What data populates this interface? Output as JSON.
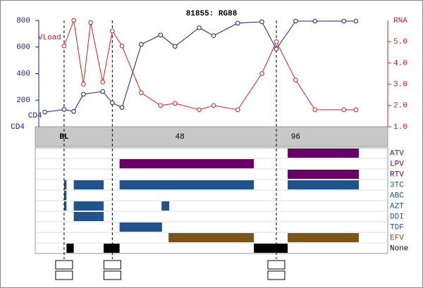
{
  "chart_data": {
    "type": "line",
    "title": "81855: RG88",
    "xlim": [
      -10.5,
      134.2
    ],
    "xticks": [
      {
        "value": 0,
        "label": "BL"
      },
      48,
      96
    ],
    "ylim": [
      0,
      800
    ],
    "yticks": [
      200,
      400,
      600,
      800
    ],
    "y_label": "CD4",
    "y2lim": [
      1,
      6
    ],
    "y2ticks": [
      {
        "value": 1,
        "label": "1.0"
      },
      {
        "value": 2,
        "label": "2.0"
      },
      {
        "value": 3,
        "label": "3.0"
      },
      {
        "value": 4,
        "label": "4.0"
      },
      {
        "value": 5,
        "label": "5.0"
      }
    ],
    "y2_label": "RNA",
    "event_weeks": [
      0,
      20,
      88
    ],
    "series": [
      {
        "name": "CD4",
        "color": "#1a1a8c",
        "x": [
          -8,
          0,
          4,
          8,
          16,
          20,
          24,
          32,
          40,
          46,
          56,
          62,
          72,
          82,
          88,
          96,
          104,
          116,
          121
        ],
        "values": [
          110,
          130,
          115,
          245,
          265,
          180,
          145,
          620,
          690,
          605,
          745,
          685,
          780,
          790,
          585,
          795,
          795,
          795,
          795
        ]
      },
      {
        "name": "VLoad",
        "color": "#cc2222",
        "axis": "y2",
        "x": [
          0,
          4,
          8,
          11,
          16,
          20,
          24,
          32,
          40,
          46,
          56,
          62,
          72,
          82,
          88,
          96,
          104,
          116,
          121
        ],
        "values": [
          4.8,
          6.0,
          3.0,
          5.9,
          3.1,
          5.5,
          4.8,
          2.6,
          2.0,
          2.1,
          1.8,
          2.0,
          1.8,
          3.5,
          5.0,
          3.2,
          1.8,
          1.8,
          1.8
        ]
      }
    ]
  },
  "drugs": [
    {
      "name": "ATV",
      "color": "#660066",
      "periods": [
        [
          92.7,
          122.2
        ]
      ]
    },
    {
      "name": "LPV",
      "color": "#660066",
      "periods": [
        [
          23,
          78.7
        ]
      ]
    },
    {
      "name": "RTV",
      "color": "#660066",
      "periods": [
        [
          92.7,
          122.2
        ]
      ]
    },
    {
      "name": "3TC",
      "color": "#215289",
      "periods": [
        [
          0,
          1
        ],
        [
          4,
          16.4
        ],
        [
          23,
          78.7
        ],
        [
          92.7,
          122.2
        ]
      ]
    },
    {
      "name": "ABC",
      "color": "#215289",
      "periods": [
        [
          0,
          1
        ]
      ]
    },
    {
      "name": "AZT",
      "color": "#215289",
      "periods": [
        [
          0,
          1
        ],
        [
          4,
          16.4
        ],
        [
          40.4,
          43.6
        ]
      ]
    },
    {
      "name": "DDI",
      "color": "#215289",
      "periods": [
        [
          4,
          16.4
        ]
      ]
    },
    {
      "name": "TDF",
      "color": "#215289",
      "periods": [
        [
          23,
          40.6
        ]
      ]
    },
    {
      "name": "EFV",
      "color": "#7a5517",
      "periods": [
        [
          43.3,
          78.7
        ],
        [
          92.7,
          122.2
        ]
      ]
    },
    {
      "name": "None",
      "color": "#000000",
      "periods": [
        [
          1,
          4
        ],
        [
          16.4,
          23
        ],
        [
          78.7,
          92.7
        ]
      ]
    }
  ]
}
